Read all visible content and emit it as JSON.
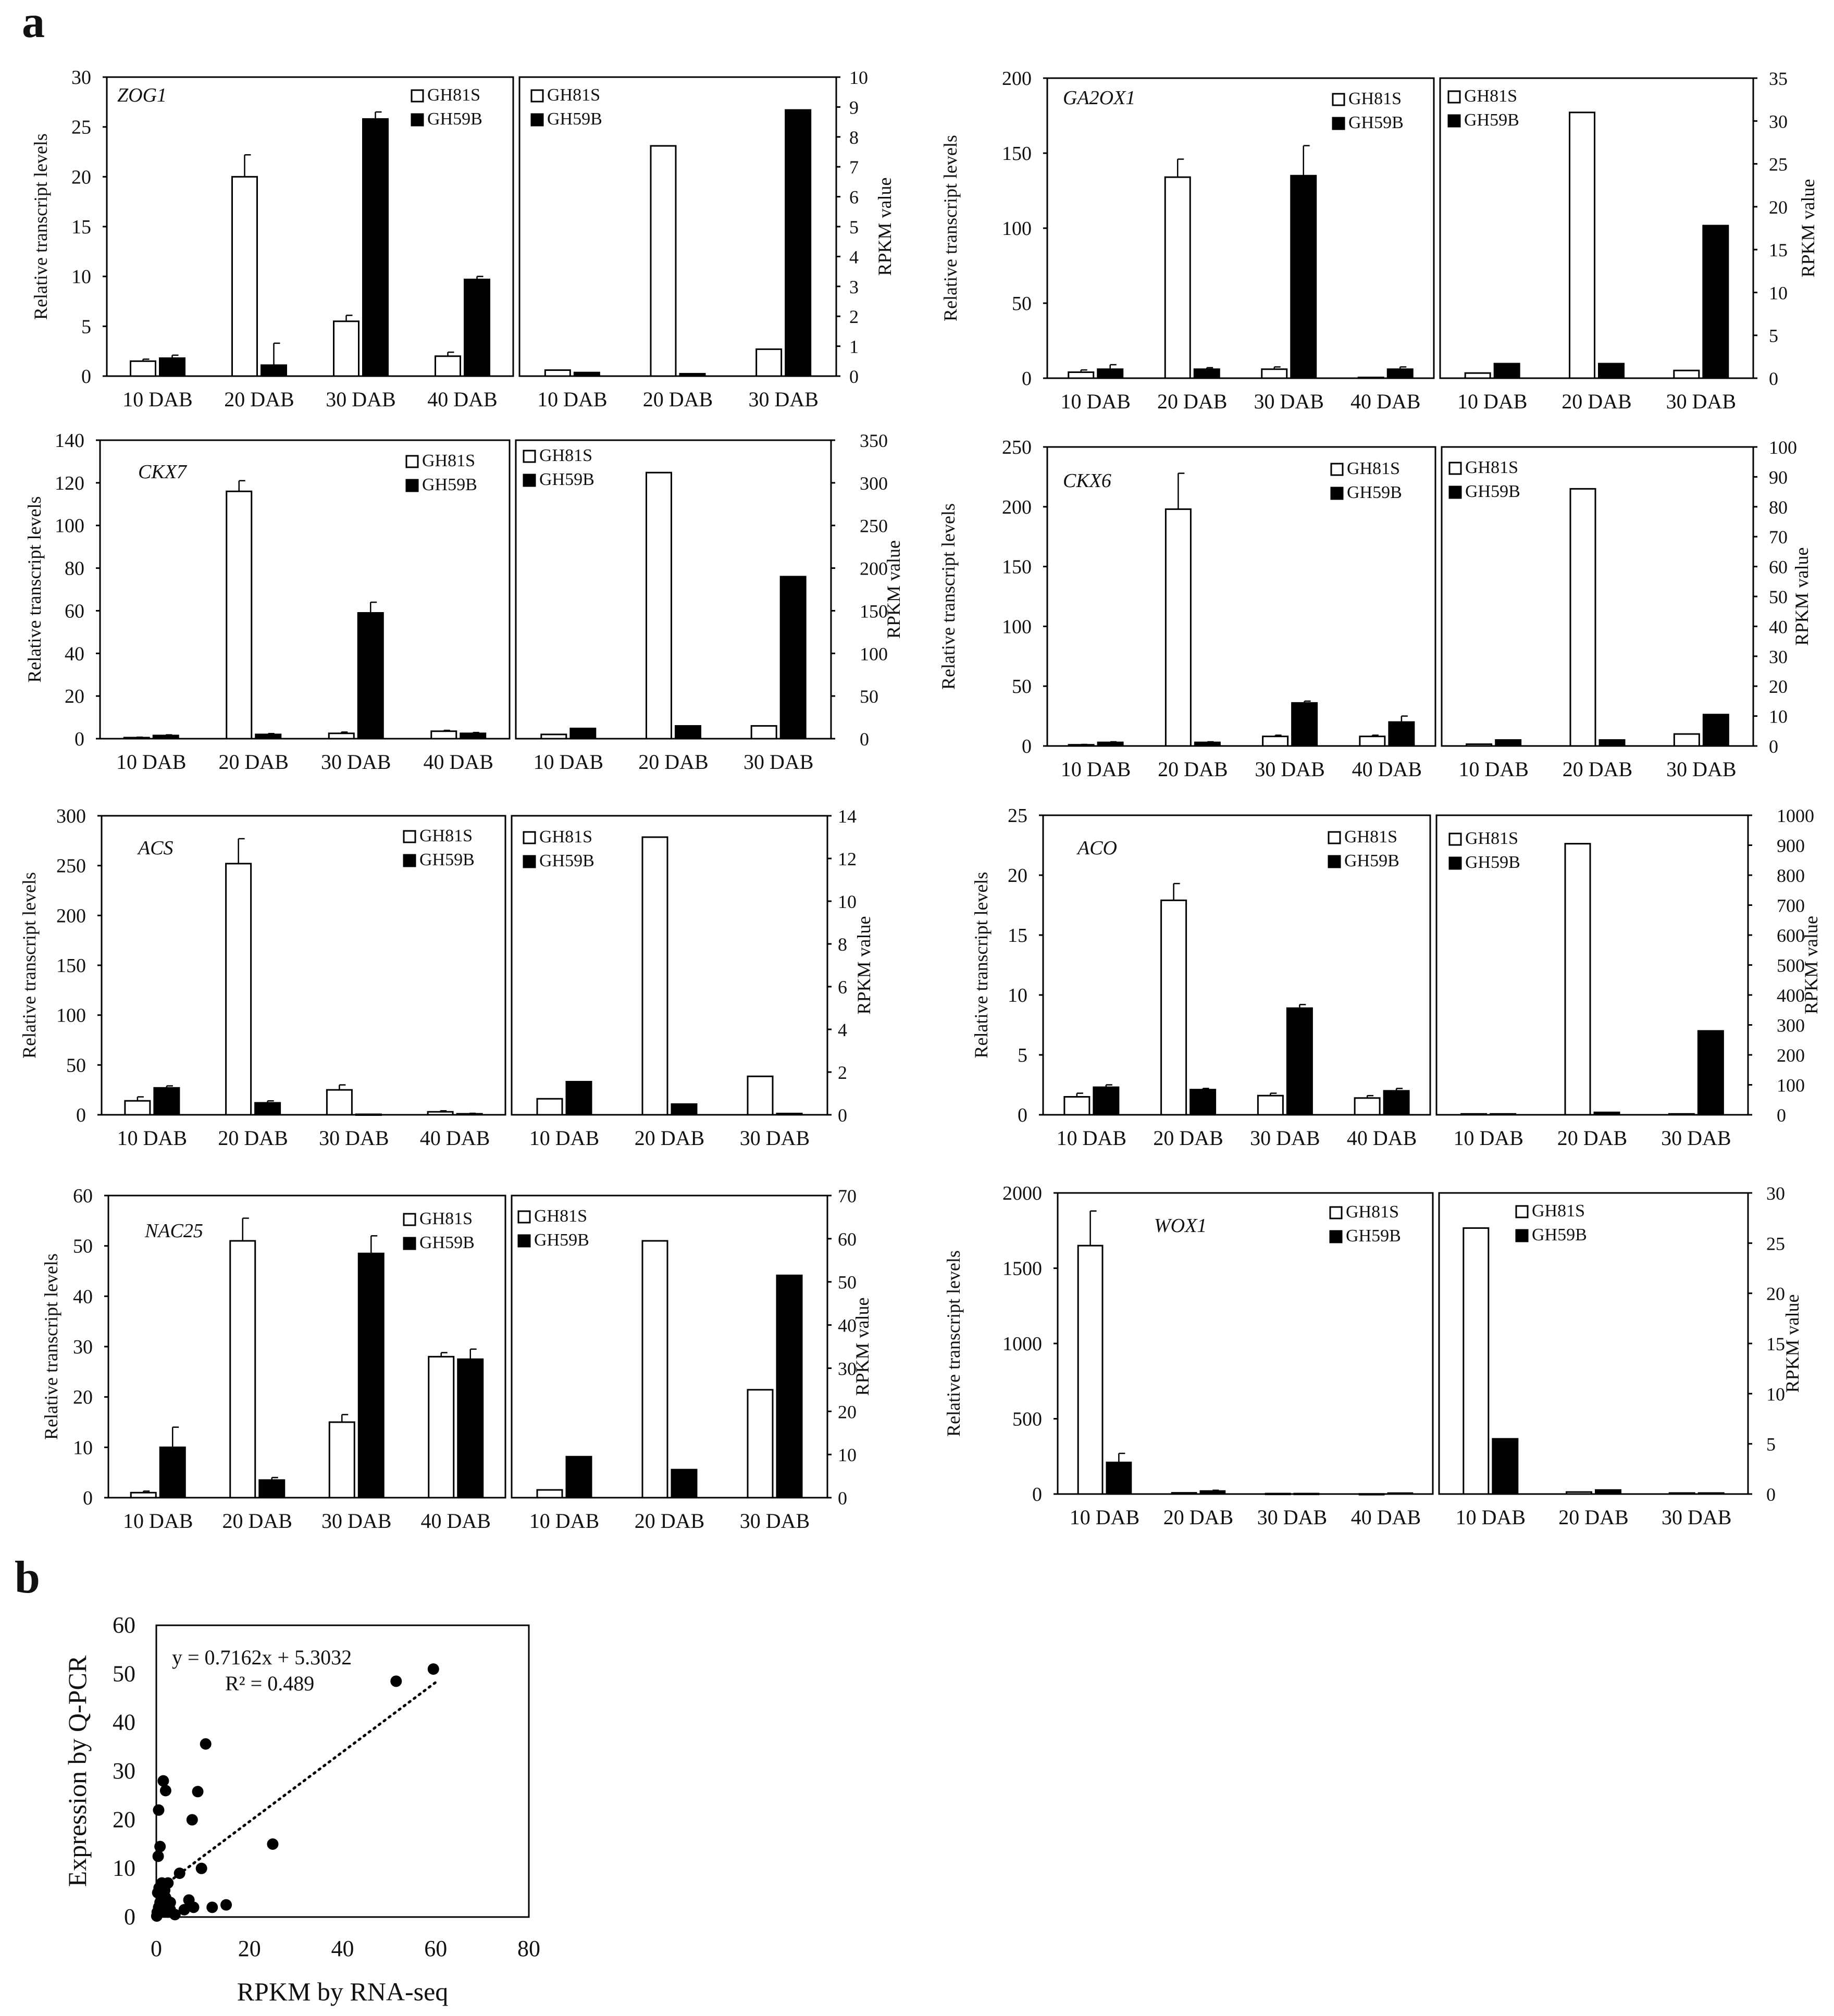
{
  "panel_labels": {
    "a": "a",
    "b": "b"
  },
  "legend": {
    "s": "GH81S",
    "b": "GH59B"
  },
  "colors": {
    "s_fill": "#ffffff",
    "b_fill": "#000000",
    "stroke": "#000000"
  },
  "chart_data": [
    {
      "type": "bar",
      "gene": "ZOG1",
      "ylabel_left": "Relative transcript levels",
      "ylabel_right": "RPKM value",
      "left": {
        "categories": [
          "10 DAB",
          "20 DAB",
          "30 DAB",
          "40 DAB"
        ],
        "ylim": [
          0,
          30
        ],
        "ticks": [
          0,
          5,
          10,
          15,
          20,
          25,
          30
        ],
        "series": [
          {
            "name": "GH81S",
            "values": [
              1.5,
              20,
              5.5,
              2
            ],
            "errors": [
              0.2,
              2.2,
              0.6,
              0.4
            ]
          },
          {
            "name": "GH59B",
            "values": [
              1.8,
              1.1,
              25.8,
              9.7
            ],
            "errors": [
              0.3,
              2.2,
              0.7,
              0.3
            ]
          }
        ]
      },
      "right": {
        "categories": [
          "10 DAB",
          "20 DAB",
          "30 DAB"
        ],
        "ylim": [
          0,
          10
        ],
        "ticks": [
          0,
          1,
          2,
          3,
          4,
          5,
          6,
          7,
          8,
          9,
          10
        ],
        "series": [
          {
            "name": "GH81S",
            "values": [
              0.2,
              7.7,
              0.9
            ]
          },
          {
            "name": "GH59B",
            "values": [
              0.12,
              0.08,
              8.9
            ]
          }
        ]
      }
    },
    {
      "type": "bar",
      "gene": "GA2OX1",
      "ylabel_left": "Relative transcript levels",
      "ylabel_right": "RPKM value",
      "left": {
        "categories": [
          "10 DAB",
          "20 DAB",
          "30 DAB",
          "40 DAB"
        ],
        "ylim": [
          0,
          200
        ],
        "ticks": [
          0,
          50,
          100,
          150,
          200
        ],
        "series": [
          {
            "name": "GH81S",
            "values": [
              4,
              134,
              6,
              0.5
            ],
            "errors": [
              1.5,
              12,
              1.5,
              0
            ]
          },
          {
            "name": "GH59B",
            "values": [
              6,
              6,
              135,
              6
            ],
            "errors": [
              3,
              1,
              20,
              1.5
            ]
          }
        ]
      },
      "right": {
        "categories": [
          "10 DAB",
          "20 DAB",
          "30 DAB"
        ],
        "ylim": [
          0,
          35
        ],
        "ticks": [
          0,
          5,
          10,
          15,
          20,
          25,
          30,
          35
        ],
        "series": [
          {
            "name": "GH81S",
            "values": [
              0.6,
              31,
              0.9
            ]
          },
          {
            "name": "GH59B",
            "values": [
              1.7,
              1.7,
              17.8
            ]
          }
        ]
      }
    },
    {
      "type": "bar",
      "gene": "CKX7",
      "ylabel_left": "Relative transcript levels",
      "ylabel_right": "RPKM value",
      "left": {
        "categories": [
          "10 DAB",
          "20 DAB",
          "30 DAB",
          "40 DAB"
        ],
        "ylim": [
          0,
          140
        ],
        "ticks": [
          0,
          20,
          40,
          60,
          80,
          100,
          120,
          140
        ],
        "series": [
          {
            "name": "GH81S",
            "values": [
              0.5,
              116,
              2.5,
              3.5
            ],
            "errors": [
              0.2,
              5,
              0.6,
              0.4
            ]
          },
          {
            "name": "GH59B",
            "values": [
              1.5,
              2,
              59,
              2.5
            ],
            "errors": [
              0.3,
              0.4,
              5,
              0.4
            ]
          }
        ]
      },
      "right": {
        "categories": [
          "10 DAB",
          "20 DAB",
          "30 DAB"
        ],
        "ylim": [
          0,
          350
        ],
        "ticks": [
          0,
          50,
          100,
          150,
          200,
          250,
          300,
          350
        ],
        "series": [
          {
            "name": "GH81S",
            "values": [
              5,
              312,
              15
            ]
          },
          {
            "name": "GH59B",
            "values": [
              12,
              15,
              190
            ]
          }
        ]
      }
    },
    {
      "type": "bar",
      "gene": "CKX6",
      "ylabel_left": "Relative transcript levels",
      "ylabel_right": "RPKM value",
      "left": {
        "categories": [
          "10 DAB",
          "20 DAB",
          "30 DAB",
          "40 DAB"
        ],
        "ylim": [
          0,
          250
        ],
        "ticks": [
          0,
          50,
          100,
          150,
          200,
          250
        ],
        "series": [
          {
            "name": "GH81S",
            "values": [
              1,
              198,
              8,
              8
            ],
            "errors": [
              0.3,
              30,
              1,
              1
            ]
          },
          {
            "name": "GH59B",
            "values": [
              3,
              3,
              36,
              20
            ],
            "errors": [
              0.5,
              0.5,
              1.5,
              5
            ]
          }
        ]
      },
      "right": {
        "categories": [
          "10 DAB",
          "20 DAB",
          "30 DAB"
        ],
        "ylim": [
          0,
          100
        ],
        "ticks": [
          0,
          10,
          20,
          30,
          40,
          50,
          60,
          70,
          80,
          90,
          100
        ],
        "series": [
          {
            "name": "GH81S",
            "values": [
              0.6,
              86,
              4
            ]
          },
          {
            "name": "GH59B",
            "values": [
              2,
              2,
              10.5
            ]
          }
        ]
      }
    },
    {
      "type": "bar",
      "gene": "ACS",
      "ylabel_left": "Relative transcript levels",
      "ylabel_right": "RPKM value",
      "left": {
        "categories": [
          "10 DAB",
          "20 DAB",
          "30 DAB",
          "40 DAB"
        ],
        "ylim": [
          0,
          300
        ],
        "ticks": [
          0,
          50,
          100,
          150,
          200,
          250,
          300
        ],
        "series": [
          {
            "name": "GH81S",
            "values": [
              14,
              252,
              25,
              3
            ],
            "errors": [
              4,
              25,
              5,
              1
            ]
          },
          {
            "name": "GH59B",
            "values": [
              27,
              12,
              0.5,
              1
            ],
            "errors": [
              2,
              2,
              0,
              0.5
            ]
          }
        ]
      },
      "right": {
        "categories": [
          "10 DAB",
          "20 DAB",
          "30 DAB"
        ],
        "ylim": [
          0,
          14
        ],
        "ticks": [
          0,
          2,
          4,
          6,
          8,
          10,
          12,
          14
        ],
        "series": [
          {
            "name": "GH81S",
            "values": [
              0.75,
              13,
              1.8
            ]
          },
          {
            "name": "GH59B",
            "values": [
              1.55,
              0.5,
              0.06
            ]
          }
        ]
      }
    },
    {
      "type": "bar",
      "gene": "ACO",
      "ylabel_left": "Relative transcript levels",
      "ylabel_right": "RPKM value",
      "left": {
        "categories": [
          "10 DAB",
          "20 DAB",
          "30 DAB",
          "40 DAB"
        ],
        "ylim": [
          0,
          25
        ],
        "ticks": [
          0,
          5,
          10,
          15,
          20,
          25
        ],
        "series": [
          {
            "name": "GH81S",
            "values": [
              1.5,
              17.9,
              1.6,
              1.4
            ],
            "errors": [
              0.3,
              1.4,
              0.2,
              0.2
            ]
          },
          {
            "name": "GH59B",
            "values": [
              2.3,
              2.1,
              8.9,
              2
            ],
            "errors": [
              0.2,
              0.1,
              0.3,
              0.2
            ]
          }
        ]
      },
      "right": {
        "categories": [
          "10 DAB",
          "20 DAB",
          "30 DAB"
        ],
        "ylim": [
          0,
          1000
        ],
        "ticks": [
          0,
          100,
          200,
          300,
          400,
          500,
          600,
          700,
          800,
          900,
          1000
        ],
        "series": [
          {
            "name": "GH81S",
            "values": [
              3,
              905,
              3
            ]
          },
          {
            "name": "GH59B",
            "values": [
              3,
              8,
              280
            ]
          }
        ]
      }
    },
    {
      "type": "bar",
      "gene": "NAC25",
      "ylabel_left": "Relative transcript levels",
      "ylabel_right": "RPKM value",
      "left": {
        "categories": [
          "10 DAB",
          "20 DAB",
          "30 DAB",
          "40 DAB"
        ],
        "ylim": [
          0,
          60
        ],
        "ticks": [
          0,
          10,
          20,
          30,
          40,
          50,
          60
        ],
        "series": [
          {
            "name": "GH81S",
            "values": [
              1,
              51,
              15,
              28
            ],
            "errors": [
              0.3,
              4.5,
              1.5,
              0.8
            ]
          },
          {
            "name": "GH59B",
            "values": [
              10,
              3.5,
              48.5,
              27.5
            ],
            "errors": [
              4,
              0.5,
              3.5,
              2
            ]
          }
        ]
      },
      "right": {
        "categories": [
          "10 DAB",
          "20 DAB",
          "30 DAB"
        ],
        "ylim": [
          0,
          70
        ],
        "ticks": [
          0,
          10,
          20,
          30,
          40,
          50,
          60,
          70
        ],
        "series": [
          {
            "name": "GH81S",
            "values": [
              1.8,
              59.5,
              25
            ]
          },
          {
            "name": "GH59B",
            "values": [
              9.5,
              6.5,
              51.5
            ]
          }
        ]
      }
    },
    {
      "type": "bar",
      "gene": "WOX1",
      "ylabel_left": "Relative transcript levels",
      "ylabel_right": "RPKM value",
      "left": {
        "categories": [
          "10 DAB",
          "20 DAB",
          "30 DAB",
          "40 DAB"
        ],
        "ylim": [
          0,
          2000
        ],
        "ticks": [
          0,
          500,
          1000,
          1500,
          2000
        ],
        "series": [
          {
            "name": "GH81S",
            "values": [
              1650,
              8,
              3,
              1
            ],
            "errors": [
              230,
              0,
              0,
              0
            ]
          },
          {
            "name": "GH59B",
            "values": [
              210,
              20,
              3,
              6
            ],
            "errors": [
              60,
              5,
              0,
              0
            ]
          }
        ]
      },
      "right": {
        "categories": [
          "10 DAB",
          "20 DAB",
          "30 DAB"
        ],
        "ylim": [
          0,
          30
        ],
        "ticks": [
          0,
          5,
          10,
          15,
          20,
          25,
          30
        ],
        "series": [
          {
            "name": "GH81S",
            "values": [
              26.5,
              0.2,
              0.1
            ]
          },
          {
            "name": "GH59B",
            "values": [
              5.5,
              0.4,
              0.1
            ]
          }
        ]
      }
    },
    {
      "type": "scatter",
      "xlabel": "RPKM by RNA-seq",
      "ylabel": "Expression by Q-PCR",
      "xlim": [
        0,
        80
      ],
      "ylim": [
        0,
        60
      ],
      "xticks": [
        0,
        20,
        40,
        60,
        80
      ],
      "yticks": [
        0,
        10,
        20,
        30,
        40,
        50,
        60
      ],
      "equation": "y = 0.7162x + 5.3032",
      "r2": "R² = 0.489",
      "trendline": {
        "slope": 0.7162,
        "intercept": 5.3032
      },
      "points": [
        [
          0.2,
          1
        ],
        [
          0.5,
          2
        ],
        [
          0.8,
          3
        ],
        [
          1,
          1.5
        ],
        [
          1.5,
          2.5
        ],
        [
          2,
          4
        ],
        [
          2.5,
          1
        ],
        [
          3,
          3
        ],
        [
          0.3,
          5
        ],
        [
          0.6,
          6
        ],
        [
          1.2,
          7
        ],
        [
          1.8,
          5.5
        ],
        [
          2.2,
          3
        ],
        [
          3,
          1.5
        ],
        [
          0.4,
          12.5
        ],
        [
          0.8,
          14.5
        ],
        [
          0.5,
          22
        ],
        [
          1.5,
          28
        ],
        [
          2,
          26
        ],
        [
          7.7,
          20
        ],
        [
          8.9,
          25.8
        ],
        [
          9.7,
          10
        ],
        [
          10.6,
          35.6
        ],
        [
          12,
          2
        ],
        [
          15,
          2.5
        ],
        [
          5,
          9
        ],
        [
          6,
          1.5
        ],
        [
          7,
          3.5
        ],
        [
          8,
          2
        ],
        [
          25,
          15
        ],
        [
          51.5,
          48.5
        ],
        [
          59.5,
          51
        ],
        [
          1,
          1
        ],
        [
          4,
          0.5
        ],
        [
          0.1,
          0.2
        ],
        [
          2.5,
          7
        ]
      ]
    }
  ]
}
